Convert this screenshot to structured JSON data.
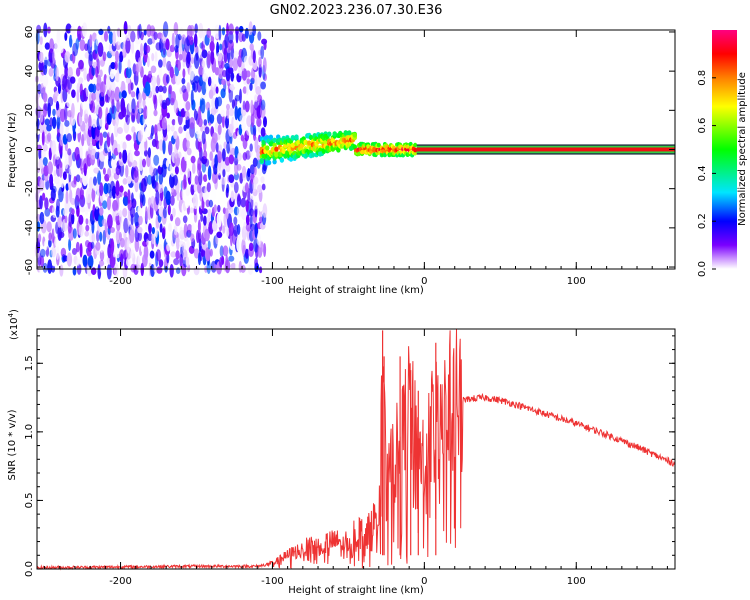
{
  "title": "GN02.2023.236.07.30.E36",
  "chart_data": [
    {
      "type": "heatmap",
      "xlabel": "Height of straight line (km)",
      "ylabel": "Frequency (Hz)",
      "xlim": [
        -255,
        165
      ],
      "ylim": [
        -61,
        61
      ],
      "xticks": [
        -200,
        -100,
        0,
        100
      ],
      "yticks": [
        -60,
        -40,
        -20,
        0,
        20,
        40,
        60
      ],
      "colorbar": {
        "label": "Normalized spectral amplitude",
        "range": [
          0,
          1
        ],
        "ticks": [
          0.0,
          0.2,
          0.4,
          0.6,
          0.8
        ],
        "colormap": [
          "#ffffff",
          "#7a00ff",
          "#0000ff",
          "#00e5ff",
          "#00ff00",
          "#ffff00",
          "#ff8000",
          "#ff0000",
          "#ff0080"
        ]
      },
      "regions": [
        {
          "description": "noise",
          "x": [
            -255,
            -105
          ],
          "y": [
            -61,
            61
          ],
          "amplitude": [
            0.0,
            0.25
          ]
        },
        {
          "description": "signal burst",
          "x": [
            -107,
            -45
          ],
          "y": [
            -8,
            10
          ],
          "amplitude": [
            0.3,
            0.9
          ]
        },
        {
          "description": "stable tone",
          "x": [
            -45,
            -5
          ],
          "y": [
            -2,
            2
          ],
          "amplitude": [
            0.4,
            1.0
          ]
        },
        {
          "description": "carrier line",
          "x": [
            -5,
            165
          ],
          "y": [
            -1,
            1
          ],
          "amplitude": [
            0.9,
            1.0
          ]
        }
      ]
    },
    {
      "type": "line",
      "xlabel": "Height of straight line (km)",
      "ylabel": "SNR (10 * v/v)",
      "multiplier": "(x10",
      "multiplier_exp": "4",
      "multiplier_close": ")",
      "xlim": [
        -255,
        165
      ],
      "ylim": [
        0,
        1.75
      ],
      "xticks": [
        -200,
        -100,
        0,
        100
      ],
      "yticks": [
        0.0,
        0.5,
        1.0,
        1.5
      ],
      "color": "#ee3333",
      "series": [
        {
          "x": [
            -255,
            -200,
            -150,
            -110,
            -100,
            -90,
            -80,
            -70,
            -60,
            -50,
            -45,
            -40,
            -35,
            -30,
            -28,
            -25,
            -20,
            -15,
            -10,
            -5,
            0,
            5,
            10,
            15,
            20,
            30,
            40,
            50,
            60,
            80,
            100,
            120,
            140,
            160,
            165
          ],
          "y": [
            0.01,
            0.015,
            0.02,
            0.02,
            0.04,
            0.1,
            0.15,
            0.18,
            0.2,
            0.2,
            0.3,
            0.25,
            0.3,
            0.45,
            1.72,
            0.6,
            0.8,
            0.9,
            1.2,
            0.9,
            0.8,
            1.05,
            1.15,
            1.2,
            1.22,
            1.24,
            1.25,
            1.23,
            1.2,
            1.13,
            1.06,
            0.98,
            0.89,
            0.79,
            0.77
          ]
        }
      ]
    }
  ]
}
